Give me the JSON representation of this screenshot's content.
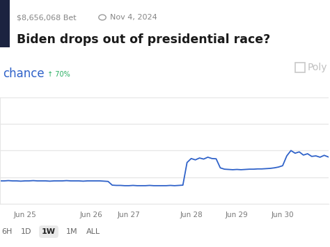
{
  "chart_data": {
    "type": "line",
    "title": "Biden drops out of presidential race?",
    "subtitle": "chance",
    "annotations": {
      "volume": "$8,656,068 Bet",
      "end_date": "Nov 4, 2024",
      "change": "↑ 70%",
      "watermark": "Poly",
      "range_buttons": [
        "6H",
        "1D",
        "1W",
        "1M",
        "ALL"
      ],
      "selected_range": "1W"
    },
    "categories": [
      null,
      null,
      null,
      null,
      null,
      null,
      "Jun 25",
      null,
      null,
      null,
      null,
      null,
      null,
      null,
      null,
      null,
      null,
      null,
      null,
      null,
      null,
      null,
      "Jun 26",
      null,
      null,
      null,
      null,
      null,
      null,
      null,
      null,
      "Jun 27",
      null,
      null,
      null,
      null,
      null,
      null,
      null,
      null,
      null,
      null,
      null,
      null,
      null,
      null,
      "Jun 28",
      null,
      null,
      null,
      null,
      null,
      null,
      null,
      null,
      null,
      null,
      "Jun 29",
      null,
      null,
      null,
      null,
      null,
      null,
      null,
      null,
      null,
      null,
      "Jun 30",
      null,
      null,
      null,
      null,
      null,
      null,
      null,
      null,
      null,
      null,
      null
    ],
    "values": [
      18.6,
      18.6,
      18.7,
      18.6,
      18.6,
      18.5,
      18.6,
      18.6,
      18.7,
      18.6,
      18.6,
      18.6,
      18.5,
      18.6,
      18.6,
      18.6,
      18.7,
      18.6,
      18.6,
      18.6,
      18.5,
      18.6,
      18.6,
      18.6,
      18.6,
      18.5,
      18.4,
      17.0,
      16.9,
      16.9,
      16.8,
      16.8,
      16.9,
      16.8,
      16.8,
      16.8,
      16.9,
      16.8,
      16.8,
      16.8,
      16.8,
      16.9,
      16.8,
      16.9,
      17.0,
      25.5,
      27.0,
      26.5,
      27.2,
      26.8,
      27.5,
      27.0,
      26.9,
      23.5,
      23.0,
      22.9,
      22.8,
      22.9,
      22.8,
      22.9,
      23.0,
      23.0,
      23.1,
      23.1,
      23.2,
      23.3,
      23.5,
      23.8,
      24.3,
      28.0,
      30.0,
      29.0,
      29.5,
      28.3,
      28.8,
      27.8,
      28.0,
      27.5,
      28.2,
      27.6
    ],
    "color": "#2f62c9",
    "ylim": [
      10,
      50
    ],
    "yticks": [
      10,
      20,
      30,
      40,
      50
    ],
    "grid": true,
    "tick_labels": "x"
  }
}
